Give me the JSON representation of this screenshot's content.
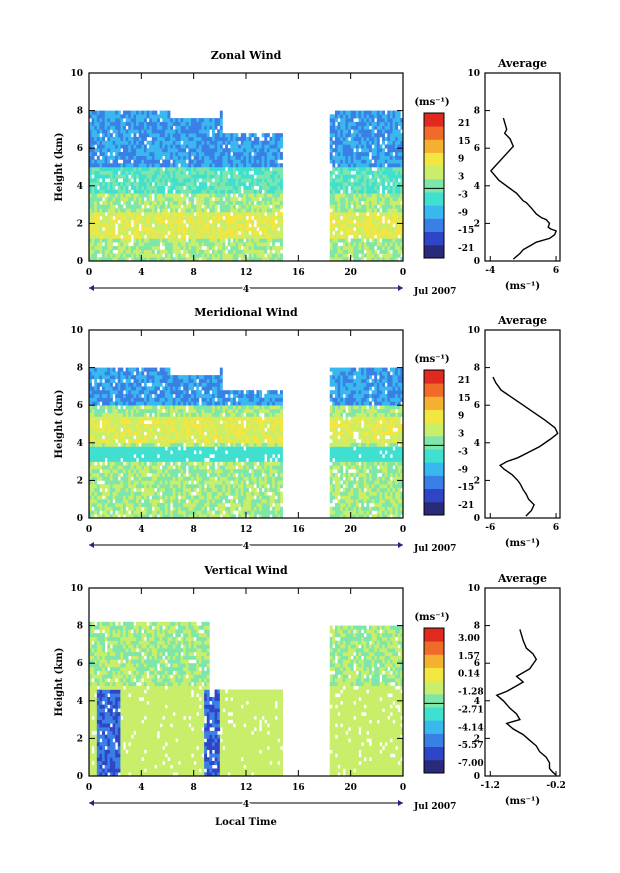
{
  "panels": [
    {
      "title": "Zonal Wind",
      "unit": "(ms⁻¹)",
      "colorbar_ticks": [
        "21",
        "15",
        "9",
        "3",
        "-3",
        "-9",
        "-15",
        "-21"
      ],
      "avg_title": "Average",
      "avg_xticks": [
        "-4",
        "6"
      ],
      "avg_unit": "(ms⁻¹)",
      "date": "Jul 2007",
      "day_label": "4",
      "xticks": [
        "0",
        "4",
        "8",
        "12",
        "16",
        "20",
        "0"
      ],
      "yticks": [
        "0",
        "2",
        "4",
        "6",
        "8",
        "10"
      ],
      "ylabel": "Height (km)",
      "profile": {
        "x": [
          -2,
          -1.5,
          -1.8,
          -1,
          -0.5,
          -3.9,
          -2.7,
          0,
          1,
          1.5,
          2.3,
          3,
          3.8,
          4.5,
          5,
          4.8,
          5.2,
          6,
          5.8,
          5,
          3,
          2,
          1,
          0.5,
          -0.5
        ],
        "y": [
          7.6,
          7,
          6.8,
          6.5,
          6.1,
          4.8,
          4.3,
          3.6,
          3.2,
          3.1,
          2.8,
          2.5,
          2.3,
          2.2,
          2,
          1.8,
          1.7,
          1.6,
          1.4,
          1.2,
          1,
          0.8,
          0.6,
          0.4,
          0.1
        ]
      }
    },
    {
      "title": "Meridional Wind",
      "unit": "(ms⁻¹)",
      "colorbar_ticks": [
        "21",
        "15",
        "9",
        "3",
        "-3",
        "-9",
        "-15",
        "-21"
      ],
      "avg_title": "Average",
      "avg_xticks": [
        "-6",
        "6"
      ],
      "avg_unit": "(ms⁻¹)",
      "date": "Jul 2007",
      "day_label": "4",
      "xticks": [
        "0",
        "4",
        "8",
        "12",
        "16",
        "20",
        "0"
      ],
      "yticks": [
        "0",
        "2",
        "4",
        "6",
        "8",
        "10"
      ],
      "ylabel": "Height (km)",
      "profile": {
        "x": [
          -5.5,
          -5,
          -4,
          -2,
          0,
          2,
          4,
          5.8,
          6.3,
          5,
          3,
          1,
          -1,
          -3,
          -4.2,
          -3.5,
          -2,
          -1,
          -0.5,
          0,
          0.5,
          1,
          2,
          1.5,
          0.5
        ],
        "y": [
          7.5,
          7.2,
          6.8,
          6.4,
          6,
          5.6,
          5.2,
          4.8,
          4.5,
          4.2,
          3.8,
          3.5,
          3.2,
          3,
          2.8,
          2.6,
          2.3,
          2,
          1.8,
          1.5,
          1.3,
          1,
          0.7,
          0.4,
          0.1
        ]
      }
    },
    {
      "title": "Vertical Wind",
      "unit": "(ms⁻¹)",
      "colorbar_ticks": [
        "3.00",
        "1.57",
        "0.14",
        "-1.28",
        "-2.71",
        "-4.14",
        "-5.57",
        "-7.00"
      ],
      "avg_title": "Average",
      "avg_xticks": [
        "-1.2",
        "-0.2"
      ],
      "avg_unit": "(ms⁻¹)",
      "date": "Jul 2007",
      "day_label": "4",
      "xticks": [
        "0",
        "4",
        "8",
        "12",
        "16",
        "20",
        "0"
      ],
      "yticks": [
        "0",
        "2",
        "4",
        "6",
        "8",
        "10"
      ],
      "ylabel": "Height (km)",
      "xlabel": "Local Time",
      "profile": {
        "x": [
          -0.75,
          -0.7,
          -0.65,
          -0.55,
          -0.5,
          -0.6,
          -0.8,
          -0.7,
          -0.95,
          -1.1,
          -1.0,
          -0.9,
          -0.8,
          -0.75,
          -0.95,
          -0.85,
          -0.7,
          -0.6,
          -0.5,
          -0.45,
          -0.35,
          -0.3,
          -0.3,
          -0.25,
          -0.2
        ],
        "y": [
          7.8,
          7.2,
          6.8,
          6.5,
          6.2,
          5.7,
          5.3,
          5.0,
          4.5,
          4.3,
          4.0,
          3.6,
          3.3,
          3.0,
          2.8,
          2.5,
          2.2,
          1.9,
          1.6,
          1.3,
          1.0,
          0.7,
          0.4,
          0.2,
          0.05
        ]
      }
    }
  ],
  "chart_data": [
    {
      "type": "heatmap",
      "title": "Zonal Wind",
      "xlabel": "",
      "ylabel": "Height (km)",
      "xlim": [
        0,
        24
      ],
      "ylim": [
        0,
        10
      ],
      "colorbar": {
        "min": -21,
        "max": 21,
        "unit": "(ms⁻¹)"
      },
      "average_profile_units": "(ms⁻¹)",
      "avg_xlim": [
        -4,
        6
      ]
    },
    {
      "type": "heatmap",
      "title": "Meridional Wind",
      "xlabel": "",
      "ylabel": "Height (km)",
      "xlim": [
        0,
        24
      ],
      "ylim": [
        0,
        10
      ],
      "colorbar": {
        "min": -21,
        "max": 21,
        "unit": "(ms⁻¹)"
      },
      "avg_xlim": [
        -6,
        6
      ]
    },
    {
      "type": "heatmap",
      "title": "Vertical Wind",
      "xlabel": "Local Time",
      "ylabel": "Height (km)",
      "xlim": [
        0,
        24
      ],
      "ylim": [
        0,
        10
      ],
      "colorbar": {
        "min": -7.0,
        "max": 3.0,
        "unit": "(ms⁻¹)"
      },
      "avg_xlim": [
        -1.2,
        -0.2
      ]
    }
  ],
  "colors": {
    "scale": [
      "#2a2a7a",
      "#2f45c8",
      "#3a7fe6",
      "#38b8ee",
      "#40e0d0",
      "#7ee6a8",
      "#c8ee6a",
      "#f4e640",
      "#f6b030",
      "#f06a28",
      "#e02a20"
    ]
  }
}
